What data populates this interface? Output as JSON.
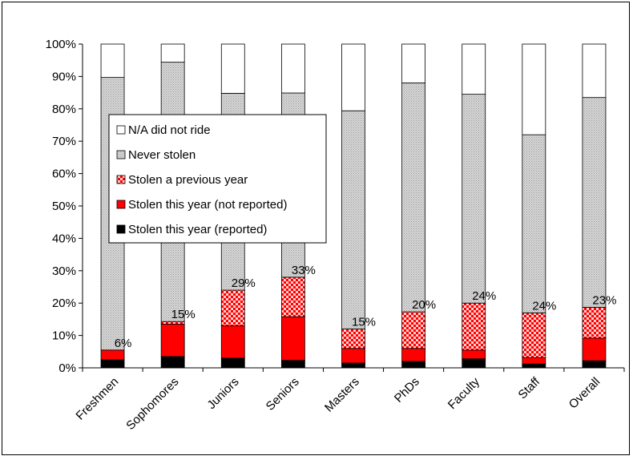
{
  "chart_data": {
    "type": "bar",
    "stacked": true,
    "percent_stacked": true,
    "categories": [
      "Freshmen",
      "Sophomores",
      "Juniors",
      "Seniors",
      "Masters",
      "PhDs",
      "Faculty",
      "Staff",
      "Overall"
    ],
    "ylim": [
      0,
      100
    ],
    "yticks": [
      "0%",
      "10%",
      "20%",
      "30%",
      "40%",
      "50%",
      "60%",
      "70%",
      "80%",
      "90%",
      "100%"
    ],
    "xlabel": "",
    "ylabel": "",
    "title": "",
    "legend_position": "left",
    "series": [
      {
        "name": "Stolen this year (reported)",
        "color": "#000000",
        "pattern": "solid",
        "values": [
          2.5,
          3.5,
          3,
          2.3,
          1.5,
          2,
          2.8,
          1.2,
          2.2
        ]
      },
      {
        "name": "Stolen this year (not reported)",
        "color": "#ff0000",
        "pattern": "solid",
        "values": [
          3,
          10,
          10,
          13.5,
          4.5,
          4,
          2.7,
          2,
          7
        ]
      },
      {
        "name": "Stolen a previous year",
        "color": "#ff0000",
        "pattern": "checker",
        "values": [
          0,
          0.8,
          11,
          12.2,
          6,
          11.3,
          14.5,
          13.8,
          9.5
        ]
      },
      {
        "name": "Never stolen",
        "color": "#c8c8c8",
        "pattern": "dots",
        "values": [
          84.2,
          80.1,
          60.8,
          56.9,
          67.4,
          70.7,
          64.5,
          55,
          64.8
        ]
      },
      {
        "name": "N/A did not ride",
        "color": "#ffffff",
        "pattern": "solid",
        "values": [
          10.3,
          5.6,
          15.2,
          15.1,
          20.6,
          12,
          15.5,
          28,
          16.5
        ]
      }
    ],
    "data_labels": [
      "6%",
      "15%",
      "29%",
      "33%",
      "15%",
      "20%",
      "24%",
      "24%",
      "23%"
    ],
    "grid": false
  }
}
